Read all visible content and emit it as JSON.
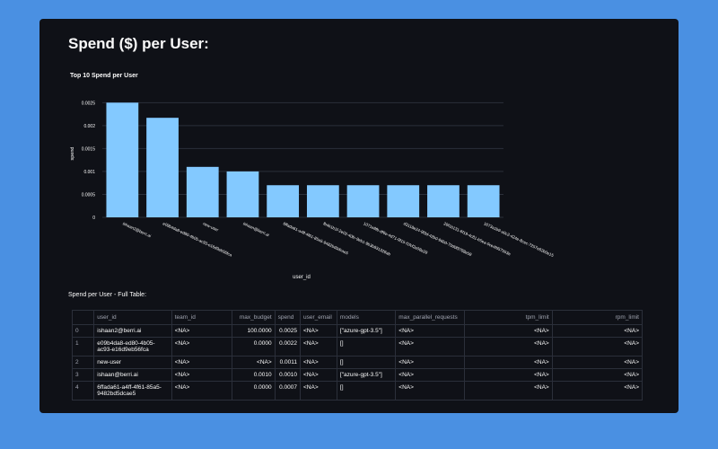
{
  "page": {
    "title": "Spend ($) per User:"
  },
  "chart_data": {
    "type": "bar",
    "title": "Top 10 Spend per User",
    "xlabel": "user_id",
    "ylabel": "spend",
    "ylim": [
      0,
      0.0028
    ],
    "yticks": [
      0,
      0.0005,
      0.001,
      0.0015,
      0.002,
      0.0025
    ],
    "ytick_labels": [
      "0",
      "0.0005",
      "0.001",
      "0.0015",
      "0.002",
      "0.0025"
    ],
    "categories": [
      "ishaan2@berri.ai",
      "e09b4da8-ed80-4b05-ac93-e16d9eb56fca",
      "new-user",
      "ishaan@berri.ai",
      "6ffada61-a4ff-4f61-85a5-9482bd5dcae5",
      "fb4b1b1f-2e02-40fc-9eb1-9b3b831328ab",
      "1071e8fb-df6e-4d71-9f15-f1fcf2e08e29",
      "d3118e24-9f3d-42b0-96b0-70d0f9788e59",
      "29f1b131-6f19-4c81-b5ea-0ce4fd57553e",
      "1673a1b9-a0c2-424e-8cec-7257e62b0e15"
    ],
    "values": [
      0.0025,
      0.00217,
      0.0011,
      0.001,
      0.0007,
      0.0007,
      0.0007,
      0.0007,
      0.0007,
      0.0007
    ],
    "bar_color": "#83c9ff"
  },
  "table": {
    "label": "Spend per User - Full Table:",
    "columns": [
      "",
      "user_id",
      "team_id",
      "max_budget",
      "spend",
      "user_email",
      "models",
      "max_parallel_requests",
      "tpm_limit",
      "rpm_limit"
    ],
    "rows": [
      [
        "0",
        "ishaan2@berri.ai",
        "<NA>",
        "100.0000",
        "0.0025",
        "<NA>",
        "[\"azure-gpt-3.5\"]",
        "<NA>",
        "<NA>",
        "<NA>"
      ],
      [
        "1",
        "e09b4da8-ed80-4b05-ac93-e16d9eb56fca",
        "<NA>",
        "0.0000",
        "0.0022",
        "<NA>",
        "[]",
        "<NA>",
        "<NA>",
        "<NA>"
      ],
      [
        "2",
        "new-user",
        "<NA>",
        "<NA>",
        "0.0011",
        "<NA>",
        "[]",
        "<NA>",
        "<NA>",
        "<NA>"
      ],
      [
        "3",
        "ishaan@berri.ai",
        "<NA>",
        "0.0010",
        "0.0010",
        "<NA>",
        "[\"azure-gpt-3.5\"]",
        "<NA>",
        "<NA>",
        "<NA>"
      ],
      [
        "4",
        "6ffada61-a4ff-4f61-85a5-9482bd5dcae5",
        "<NA>",
        "0.0000",
        "0.0007",
        "<NA>",
        "[]",
        "<NA>",
        "<NA>",
        "<NA>"
      ]
    ]
  },
  "colors": {
    "background": "#4a90e2",
    "panel": "#0f1117",
    "bar": "#83c9ff",
    "grid": "#2b2f3a"
  }
}
